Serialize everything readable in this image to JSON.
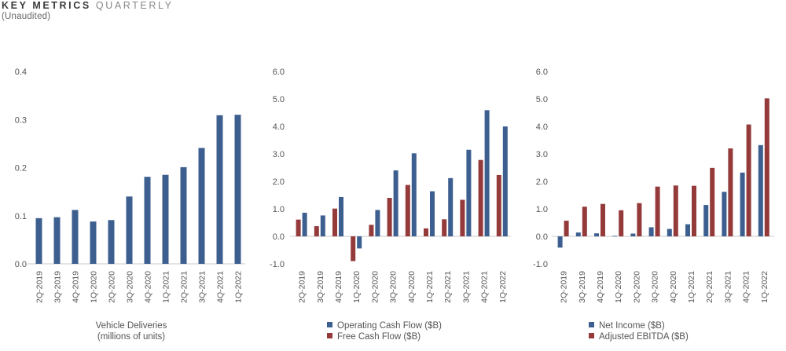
{
  "header": {
    "title_bold": "KEY METRICS",
    "title_light": "QUARTERLY",
    "subtitle": "(Unaudited)"
  },
  "colors": {
    "blue": "#3d5f8f",
    "red": "#943a3a",
    "axis": "#c8c8c8"
  },
  "chart_data": [
    {
      "type": "bar",
      "categories": [
        "2Q-2019",
        "3Q-2019",
        "4Q-2019",
        "1Q-2020",
        "2Q-2020",
        "3Q-2020",
        "4Q-2020",
        "1Q-2021",
        "2Q-2021",
        "3Q-2021",
        "4Q-2021",
        "1Q-2022"
      ],
      "series": [
        {
          "values": [
            0.095,
            0.097,
            0.112,
            0.088,
            0.091,
            0.14,
            0.181,
            0.185,
            0.201,
            0.241,
            0.309,
            0.31
          ]
        }
      ],
      "yticks": [
        "0.0",
        "0.1",
        "0.2",
        "0.3",
        "0.4"
      ],
      "ylim": [
        0,
        0.4
      ],
      "xlabel": [
        "Vehicle Deliveries",
        "(millions of units)"
      ]
    },
    {
      "type": "bar",
      "categories": [
        "2Q-2019",
        "3Q-2019",
        "4Q-2019",
        "1Q-2020",
        "2Q-2020",
        "3Q-2020",
        "4Q-2020",
        "1Q-2021",
        "2Q-2021",
        "3Q-2021",
        "4Q-2021",
        "1Q-2022"
      ],
      "series": [
        {
          "name": "Free Cash Flow ($B)",
          "color": "red",
          "values": [
            0.61,
            0.37,
            1.01,
            -0.9,
            0.42,
            1.4,
            1.87,
            0.29,
            0.62,
            1.33,
            2.78,
            2.23
          ]
        },
        {
          "name": "Operating Cash Flow ($B)",
          "color": "blue",
          "values": [
            0.86,
            0.76,
            1.43,
            -0.44,
            0.96,
            2.4,
            3.02,
            1.64,
            2.12,
            3.15,
            4.59,
            4.0
          ]
        }
      ],
      "legend_order": [
        1,
        0
      ],
      "yticks": [
        "-1.0",
        "0.0",
        "1.0",
        "2.0",
        "3.0",
        "4.0",
        "5.0",
        "6.0"
      ],
      "ylim": [
        -1,
        6
      ]
    },
    {
      "type": "bar",
      "categories": [
        "2Q-2019",
        "3Q-2019",
        "4Q-2019",
        "1Q-2020",
        "2Q-2020",
        "3Q-2020",
        "4Q-2020",
        "1Q-2021",
        "2Q-2021",
        "3Q-2021",
        "4Q-2021",
        "1Q-2022"
      ],
      "series": [
        {
          "name": "Net Income ($B)",
          "color": "blue",
          "values": [
            -0.41,
            0.14,
            0.11,
            0.02,
            0.1,
            0.33,
            0.27,
            0.44,
            1.14,
            1.62,
            2.32,
            3.32
          ]
        },
        {
          "name": "Adjusted EBITDA ($B)",
          "color": "red",
          "values": [
            0.57,
            1.08,
            1.18,
            0.95,
            1.21,
            1.81,
            1.85,
            1.84,
            2.49,
            3.2,
            4.07,
            5.02
          ]
        }
      ],
      "legend_order": [
        0,
        1
      ],
      "yticks": [
        "-1.0",
        "0.0",
        "1.0",
        "2.0",
        "3.0",
        "4.0",
        "5.0",
        "6.0"
      ],
      "ylim": [
        -1,
        6
      ]
    }
  ]
}
